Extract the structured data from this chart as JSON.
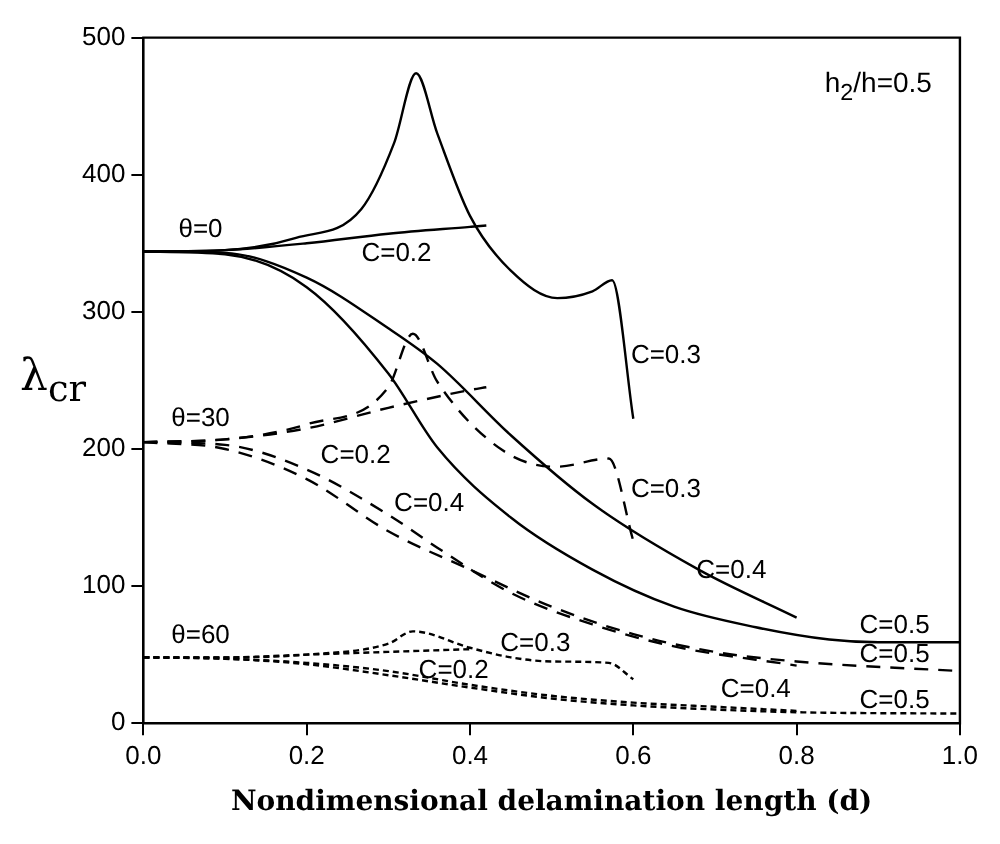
{
  "chart_data": {
    "type": "line",
    "xlabel": "Nondimensional delamination length (d)",
    "ylabel": "λ$_{cr}$",
    "xlim": [
      0,
      1
    ],
    "xticks": [
      {
        "value": 0,
        "label": "0.0"
      },
      {
        "value": 0.2,
        "label": "0.2"
      },
      {
        "value": 0.4,
        "label": "0.4"
      },
      {
        "value": 0.6,
        "label": "0.6"
      },
      {
        "value": 0.8,
        "label": "0.8"
      },
      {
        "value": 1,
        "label": "1.0"
      }
    ],
    "ylim": [
      0,
      500
    ],
    "yticks": [
      0,
      100,
      200,
      300,
      400,
      500
    ],
    "grid": false,
    "legend": false,
    "marker": "none",
    "series": [
      {
        "color": "#000000",
        "line_style": "solid",
        "x": [
          0,
          0.1,
          0.2,
          0.3,
          0.4,
          0.42
        ],
        "values": [
          344,
          345,
          350,
          357,
          362,
          363
        ]
      },
      {
        "color": "#000000",
        "line_style": "solid",
        "x": [
          0,
          0.1,
          0.187,
          0.267,
          0.307,
          0.334,
          0.36,
          0.4,
          0.45,
          0.507,
          0.55,
          0.574,
          0.6
        ],
        "values": [
          344,
          345,
          354,
          375,
          423,
          474,
          430,
          370,
          330,
          310,
          315,
          323,
          222
        ]
      },
      {
        "color": "#000000",
        "line_style": "solid",
        "x": [
          0,
          0.1,
          0.2,
          0.3,
          0.36,
          0.45,
          0.55,
          0.68,
          0.8
        ],
        "values": [
          344,
          343,
          325,
          288,
          262,
          210,
          160,
          112,
          77
        ]
      },
      {
        "color": "#000000",
        "line_style": "solid",
        "x": [
          0,
          0.1,
          0.2,
          0.3,
          0.36,
          0.45,
          0.55,
          0.65,
          0.75,
          0.84,
          0.9,
          1.0
        ],
        "values": [
          344,
          342,
          318,
          255,
          201,
          150,
          112,
          85,
          70,
          61,
          59,
          59
        ]
      },
      {
        "color": "#000000",
        "line_style": "dashed",
        "x": [
          0,
          0.1,
          0.2,
          0.3,
          0.4,
          0.42
        ],
        "values": [
          205,
          207,
          215,
          230,
          243,
          245
        ]
      },
      {
        "color": "#000000",
        "line_style": "dashed",
        "x": [
          0,
          0.1,
          0.2,
          0.3,
          0.33,
          0.36,
          0.44,
          0.505,
          0.57,
          0.6
        ],
        "values": [
          205,
          207,
          218,
          245,
          284,
          249,
          199,
          187,
          193,
          133
        ]
      },
      {
        "color": "#000000",
        "line_style": "dashed",
        "x": [
          0,
          0.1,
          0.2,
          0.3,
          0.36,
          0.45,
          0.55,
          0.65,
          0.8
        ],
        "values": [
          205,
          203,
          185,
          152,
          128,
          95,
          72,
          56,
          42
        ]
      },
      {
        "color": "#000000",
        "line_style": "dashed",
        "x": [
          0,
          0.1,
          0.2,
          0.3,
          0.4,
          0.5,
          0.6,
          0.7,
          0.8,
          1.0
        ],
        "values": [
          205,
          200,
          178,
          140,
          112,
          85,
          65,
          52,
          45,
          38
        ]
      },
      {
        "color": "#000000",
        "line_style": "dotted",
        "x": [
          0,
          0.1,
          0.2,
          0.3,
          0.4
        ],
        "values": [
          48,
          48,
          50,
          52,
          54
        ]
      },
      {
        "color": "#000000",
        "line_style": "dotted",
        "x": [
          0,
          0.1,
          0.2,
          0.3,
          0.33,
          0.4,
          0.45,
          0.5,
          0.57,
          0.6
        ],
        "values": [
          48,
          48,
          50,
          58,
          67,
          55,
          48,
          45,
          44,
          32
        ]
      },
      {
        "color": "#000000",
        "line_style": "dotted",
        "x": [
          0,
          0.1,
          0.2,
          0.3,
          0.4,
          0.5,
          0.6,
          0.7,
          0.8
        ],
        "values": [
          48,
          47,
          44,
          38,
          28,
          20,
          15,
          12,
          9
        ]
      },
      {
        "color": "#000000",
        "line_style": "dotted",
        "x": [
          0,
          0.1,
          0.2,
          0.3,
          0.4,
          0.5,
          0.6,
          0.7,
          0.8,
          1.0
        ],
        "values": [
          48,
          47,
          43,
          35,
          26,
          18,
          13,
          10,
          8,
          7
        ]
      }
    ],
    "annotations": [
      "h$_{2}$/h=0.5",
      "θ=0",
      "C=0.2",
      "C=0.3",
      "θ=30",
      "C=0.2",
      "C=0.4",
      "C=0.3",
      "C=0.4",
      "C=0.5",
      "C=0.5",
      "C=0.5",
      "θ=60",
      "C=0.3",
      "C=0.2",
      "C=0.4"
    ]
  }
}
